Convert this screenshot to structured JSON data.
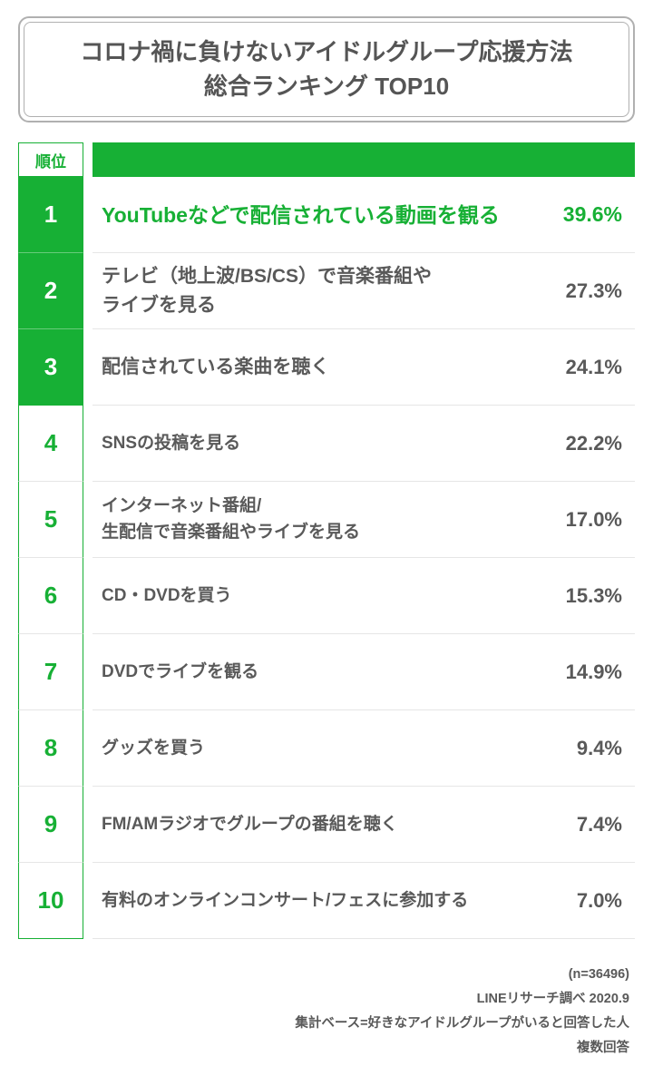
{
  "title": {
    "line1": "コロナ禍に負けないアイドルグループ応援方法",
    "line2": "総合ランキング TOP10"
  },
  "header": {
    "rank_label": "順位"
  },
  "colors": {
    "accent_green": "#17b035",
    "text_gray": "#595959",
    "border_gray": "#b0b0b0",
    "row_divider": "#e6e6e6",
    "background": "#ffffff"
  },
  "ranking": {
    "type": "table",
    "columns": [
      "rank",
      "label",
      "percent"
    ],
    "rows": [
      {
        "rank": "1",
        "label": "YouTubeなどで配信されている動画を観る",
        "percent": "39.6%",
        "highlight": true,
        "small": false
      },
      {
        "rank": "2",
        "label": "テレビ（地上波/BS/CS）で音楽番組や\nライブを見る",
        "percent": "27.3%",
        "highlight": false,
        "small": false
      },
      {
        "rank": "3",
        "label": "配信されている楽曲を聴く",
        "percent": "24.1%",
        "highlight": false,
        "small": false
      },
      {
        "rank": "4",
        "label": "SNSの投稿を見る",
        "percent": "22.2%",
        "highlight": false,
        "small": true
      },
      {
        "rank": "5",
        "label": "インターネット番組/\n生配信で音楽番組やライブを見る",
        "percent": "17.0%",
        "highlight": false,
        "small": true
      },
      {
        "rank": "6",
        "label": "CD・DVDを買う",
        "percent": "15.3%",
        "highlight": false,
        "small": true
      },
      {
        "rank": "7",
        "label": "DVDでライブを観る",
        "percent": "14.9%",
        "highlight": false,
        "small": true
      },
      {
        "rank": "8",
        "label": "グッズを買う",
        "percent": "9.4%",
        "highlight": false,
        "small": true
      },
      {
        "rank": "9",
        "label": "FM/AMラジオでグループの番組を聴く",
        "percent": "7.4%",
        "highlight": false,
        "small": true
      },
      {
        "rank": "10",
        "label": "有料のオンラインコンサート/フェスに参加する",
        "percent": "7.0%",
        "highlight": false,
        "small": true
      }
    ]
  },
  "footer": {
    "line1": "(n=36496)",
    "line2": "LINEリサーチ調べ 2020.9",
    "line3": "集計ベース=好きなアイドルグループがいると回答した人",
    "line4": "複数回答"
  }
}
